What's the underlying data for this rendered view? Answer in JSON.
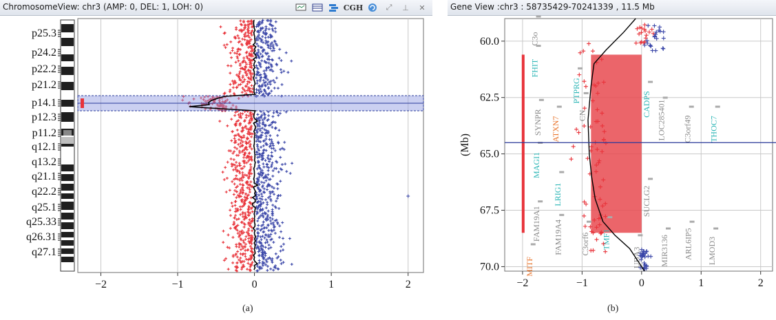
{
  "panel_a": {
    "title": "ChromosomeView: chr3 (AMP: 0, DEL: 1, LOH: 0)",
    "toolbar": [
      {
        "icon": "monitor-icon"
      },
      {
        "icon": "table-icon"
      },
      {
        "icon": "layers-icon"
      },
      {
        "icon": "cgh-icon",
        "label": "CGH"
      },
      {
        "icon": "refresh-icon"
      },
      {
        "icon": "expand-icon"
      },
      {
        "icon": "pin-icon"
      },
      {
        "icon": "close-icon",
        "label": "✕"
      }
    ],
    "bands": [
      "p25.3",
      "p24.2",
      "p22.2",
      "p21.2",
      "p14.1",
      "p12.3",
      "p11.2",
      "q12.1",
      "q13.2",
      "q21.1",
      "q22.2",
      "q25.1",
      "q25.33",
      "q26.31",
      "q27.1"
    ],
    "caption": "(a)"
  },
  "panel_b": {
    "title": "Gene View :chr3 : 58735429-70241339 , 11.5 Mb",
    "ylabel": "(Mb)",
    "genes": [
      {
        "name": "C3o",
        "color": "#888888"
      },
      {
        "name": "FHIT",
        "color": "#2ab5b5"
      },
      {
        "name": "PTPRG",
        "color": "#2ab5b5"
      },
      {
        "name": "SYNPR",
        "color": "#888888"
      },
      {
        "name": "ATXN7",
        "color": "#e8732a"
      },
      {
        "name": "CN",
        "color": "#888888"
      },
      {
        "name": "CADPS",
        "color": "#2ab5b5"
      },
      {
        "name": "LOC285401",
        "color": "#888888"
      },
      {
        "name": "C3orf49",
        "color": "#888888"
      },
      {
        "name": "THOC7",
        "color": "#2ab5b5"
      },
      {
        "name": "MAGI1",
        "color": "#2ab5b5"
      },
      {
        "name": "LRIG1",
        "color": "#2ab5b5"
      },
      {
        "name": "SUCLG2",
        "color": "#888888"
      },
      {
        "name": "FAM19A1",
        "color": "#888888"
      },
      {
        "name": "FAM19A4",
        "color": "#888888"
      },
      {
        "name": "C3orf6",
        "color": "#888888"
      },
      {
        "name": "TMF1",
        "color": "#2ab5b5"
      },
      {
        "name": "UBA3",
        "color": "#888888"
      },
      {
        "name": "MIR3136",
        "color": "#888888"
      },
      {
        "name": "ARL6IP5",
        "color": "#888888"
      },
      {
        "name": "LMOD3",
        "color": "#888888"
      },
      {
        "name": "MITF",
        "color": "#e8732a"
      }
    ],
    "caption": "(b)"
  },
  "chart_data": [
    {
      "type": "scatter",
      "title": "",
      "x_ticks": [
        -2,
        -1,
        0,
        1,
        2
      ],
      "xlim": [
        -2.3,
        2.2
      ],
      "outlier": {
        "x": 2.0,
        "band": "q25.1"
      },
      "highlight_band": "p14.1",
      "colors": {
        "deletion": "#e8333a",
        "gain": "#3a46a8",
        "highlight": "#6b78d0"
      }
    },
    {
      "type": "line",
      "title": "",
      "ylabel": "(Mb)",
      "y_ticks": [
        60.0,
        62.5,
        65.0,
        67.5,
        70.0
      ],
      "y_tick_labels": [
        "60.0",
        "62.5",
        "65.0",
        "67.5",
        "70.0"
      ],
      "ylim": [
        59.0,
        70.2
      ],
      "x_ticks": [
        -2,
        -1,
        0,
        1,
        2
      ],
      "xlim": [
        -2.3,
        2.2
      ],
      "cursor_y": 64.5,
      "deleted_region": {
        "x": [
          -0.85,
          0.0
        ],
        "y": [
          60.6,
          68.5
        ]
      },
      "bar_2": {
        "x": -1.99,
        "y": [
          60.6,
          68.5
        ]
      },
      "smoothed": [
        [
          -0.1,
          59.0
        ],
        [
          -0.3,
          59.6
        ],
        [
          -0.6,
          60.4
        ],
        [
          -0.8,
          61.0
        ],
        [
          -0.85,
          62.0
        ],
        [
          -0.9,
          63.5
        ],
        [
          -0.88,
          65.0
        ],
        [
          -0.84,
          66.0
        ],
        [
          -0.78,
          67.0
        ],
        [
          -0.65,
          68.0
        ],
        [
          -0.45,
          68.6
        ],
        [
          -0.2,
          69.2
        ],
        [
          0.0,
          70.0
        ],
        [
          0.05,
          70.2
        ]
      ]
    }
  ]
}
